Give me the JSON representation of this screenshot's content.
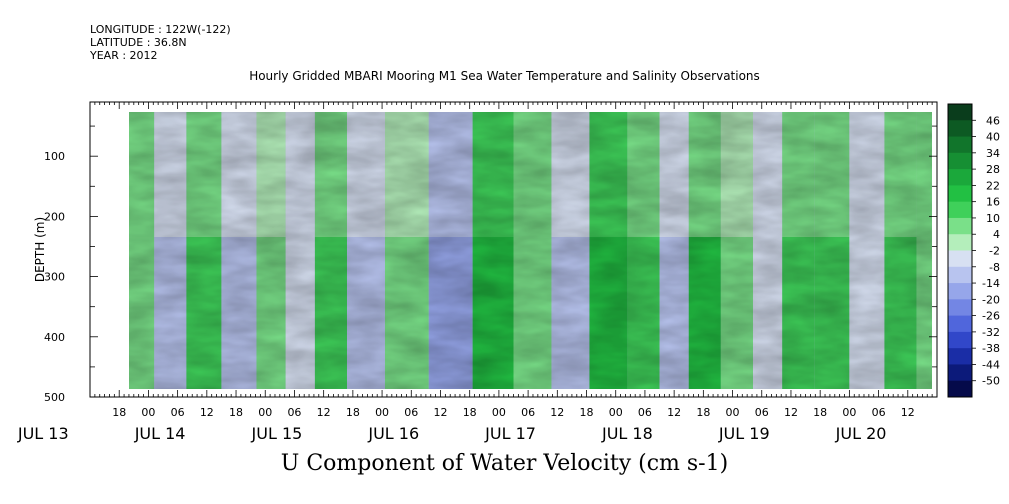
{
  "header": {
    "longitude": "LONGITUDE : 122W(-122)",
    "latitude": "LATITUDE : 36.8N",
    "year": "YEAR : 2012"
  },
  "chart_data": {
    "type": "heatmap",
    "title": "Hourly Gridded MBARI Mooring M1 Sea Water Temperature and Salinity Observations",
    "bottom_title": "U Component of Water Velocity (cm s-1)",
    "ylabel": "DEPTH (m)",
    "y_ticks": [
      100,
      200,
      300,
      400,
      500
    ],
    "ylim": [
      500,
      10
    ],
    "x_range_hours": [
      "JUL 13 12:00",
      "JUL 20 18:00"
    ],
    "x_tick_labels": [
      "18",
      "00",
      "06",
      "12",
      "18",
      "00",
      "06",
      "12",
      "18",
      "00",
      "06",
      "12",
      "18",
      "00",
      "06",
      "12",
      "18",
      "00",
      "06",
      "12",
      "18",
      "00",
      "06",
      "12",
      "18",
      "00",
      "06",
      "12"
    ],
    "x_day_labels": [
      "JUL 13",
      "JUL 14",
      "JUL 15",
      "JUL 16",
      "JUL 17",
      "JUL 18",
      "JUL 19",
      "JUL 20"
    ],
    "colorbar": {
      "levels": [
        46,
        40,
        34,
        28,
        22,
        16,
        10,
        4,
        -2,
        -8,
        -14,
        -20,
        -26,
        -32,
        -38,
        -44,
        -50
      ],
      "colors": [
        "#0a3d1c",
        "#0d5a23",
        "#11752b",
        "#168f33",
        "#1ba83b",
        "#22c043",
        "#3fd05a",
        "#7ae089",
        "#b4eebb",
        "#d7e0f2",
        "#b8c4ef",
        "#96a6ea",
        "#7386e4",
        "#5066dc",
        "#3147c9",
        "#1a2da6",
        "#0c1a7a",
        "#050a4a"
      ]
    },
    "pattern_note": "alternating vertical bands of positive (green) and negative (blue) velocity",
    "data_start_day": 0.75,
    "data_end_day": 7.75,
    "band_values": [
      {
        "day": 0.9,
        "value": 8
      },
      {
        "day": 1.2,
        "value": -10
      },
      {
        "day": 1.45,
        "value": 14
      },
      {
        "day": 1.8,
        "value": -12
      },
      {
        "day": 2.05,
        "value": 6
      },
      {
        "day": 2.3,
        "value": -6
      },
      {
        "day": 2.55,
        "value": 10
      },
      {
        "day": 2.85,
        "value": -12
      },
      {
        "day": 3.2,
        "value": 4
      },
      {
        "day": 3.6,
        "value": -16
      },
      {
        "day": 3.95,
        "value": 18
      },
      {
        "day": 4.3,
        "value": 8
      },
      {
        "day": 4.6,
        "value": -10
      },
      {
        "day": 4.95,
        "value": 20
      },
      {
        "day": 5.25,
        "value": 10
      },
      {
        "day": 5.5,
        "value": -12
      },
      {
        "day": 5.75,
        "value": 16
      },
      {
        "day": 6.05,
        "value": 6
      },
      {
        "day": 6.3,
        "value": -8
      },
      {
        "day": 6.55,
        "value": 14
      },
      {
        "day": 6.85,
        "value": 12
      },
      {
        "day": 7.15,
        "value": -6
      },
      {
        "day": 7.45,
        "value": 12
      },
      {
        "day": 7.7,
        "value": 8
      }
    ]
  }
}
